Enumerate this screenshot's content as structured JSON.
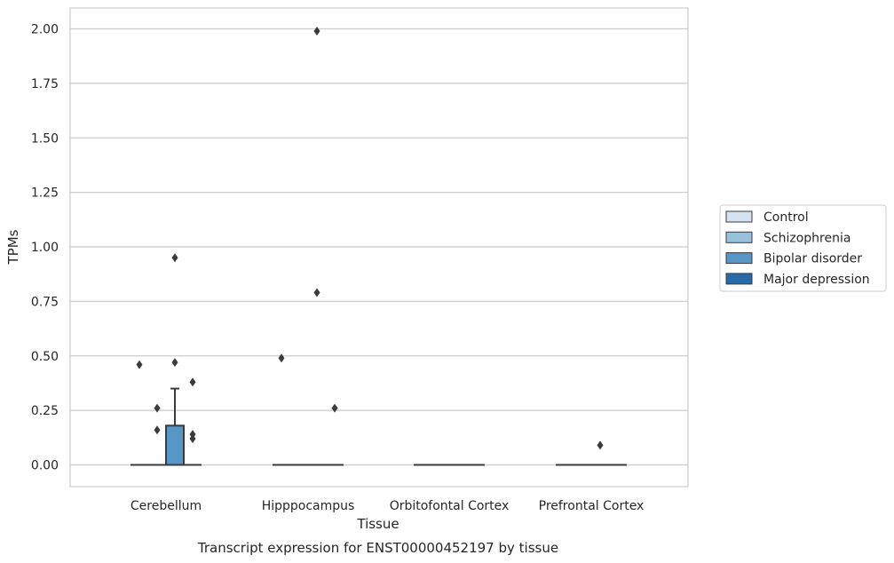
{
  "chart_data": {
    "type": "box",
    "title": "",
    "caption": "Transcript expression for ENST00000452197 by tissue",
    "xlabel": "Tissue",
    "ylabel": "TPMs",
    "ylim": [
      -0.1,
      2.1
    ],
    "yticks": [
      "0.00",
      "0.25",
      "0.50",
      "0.75",
      "1.00",
      "1.25",
      "1.50",
      "1.75",
      "2.00"
    ],
    "grid": "horizontal",
    "legend_position": "right",
    "categories": [
      "Cerebellum",
      "Hipppocampus",
      "Orbitofontal Cortex",
      "Prefrontal Cortex"
    ],
    "series": [
      {
        "name": "Control",
        "color": "#d4e3f1",
        "boxes": [
          {
            "category": "Cerebellum",
            "q1": 0,
            "median": 0,
            "q3": 0,
            "whisker_low": 0,
            "whisker_high": 0,
            "outliers": [
              0.46
            ]
          },
          {
            "category": "Hipppocampus",
            "q1": 0,
            "median": 0,
            "q3": 0,
            "whisker_low": 0,
            "whisker_high": 0,
            "outliers": [
              0.49
            ]
          },
          {
            "category": "Orbitofontal Cortex",
            "q1": 0,
            "median": 0,
            "q3": 0,
            "whisker_low": 0,
            "whisker_high": 0,
            "outliers": []
          },
          {
            "category": "Prefrontal Cortex",
            "q1": 0,
            "median": 0,
            "q3": 0,
            "whisker_low": 0,
            "whisker_high": 0,
            "outliers": []
          }
        ]
      },
      {
        "name": "Schizophrenia",
        "color": "#9ac1dc",
        "boxes": [
          {
            "category": "Cerebellum",
            "q1": 0,
            "median": 0,
            "q3": 0,
            "whisker_low": 0,
            "whisker_high": 0,
            "outliers": [
              0.26,
              0.16
            ]
          },
          {
            "category": "Hipppocampus",
            "q1": 0,
            "median": 0,
            "q3": 0,
            "whisker_low": 0,
            "whisker_high": 0,
            "outliers": []
          },
          {
            "category": "Orbitofontal Cortex",
            "q1": 0,
            "median": 0,
            "q3": 0,
            "whisker_low": 0,
            "whisker_high": 0,
            "outliers": []
          },
          {
            "category": "Prefrontal Cortex",
            "q1": 0,
            "median": 0,
            "q3": 0,
            "whisker_low": 0,
            "whisker_high": 0,
            "outliers": []
          }
        ]
      },
      {
        "name": "Bipolar disorder",
        "color": "#5697c7",
        "boxes": [
          {
            "category": "Cerebellum",
            "q1": 0,
            "median": 0,
            "q3": 0.18,
            "whisker_low": 0,
            "whisker_high": 0.35,
            "outliers": [
              0.95,
              0.47
            ]
          },
          {
            "category": "Hipppocampus",
            "q1": 0,
            "median": 0,
            "q3": 0,
            "whisker_low": 0,
            "whisker_high": 0,
            "outliers": [
              1.99,
              0.79
            ]
          },
          {
            "category": "Orbitofontal Cortex",
            "q1": 0,
            "median": 0,
            "q3": 0,
            "whisker_low": 0,
            "whisker_high": 0,
            "outliers": []
          },
          {
            "category": "Prefrontal Cortex",
            "q1": 0,
            "median": 0,
            "q3": 0,
            "whisker_low": 0,
            "whisker_high": 0,
            "outliers": [
              0.09
            ]
          }
        ]
      },
      {
        "name": "Major depression",
        "color": "#2869a8",
        "boxes": [
          {
            "category": "Cerebellum",
            "q1": 0,
            "median": 0,
            "q3": 0,
            "whisker_low": 0,
            "whisker_high": 0,
            "outliers": [
              0.38,
              0.14,
              0.12
            ]
          },
          {
            "category": "Hipppocampus",
            "q1": 0,
            "median": 0,
            "q3": 0,
            "whisker_low": 0,
            "whisker_high": 0,
            "outliers": [
              0.26
            ]
          },
          {
            "category": "Orbitofontal Cortex",
            "q1": 0,
            "median": 0,
            "q3": 0,
            "whisker_low": 0,
            "whisker_high": 0,
            "outliers": []
          },
          {
            "category": "Prefrontal Cortex",
            "q1": 0,
            "median": 0,
            "q3": 0,
            "whisker_low": 0,
            "whisker_high": 0,
            "outliers": []
          }
        ]
      }
    ]
  }
}
